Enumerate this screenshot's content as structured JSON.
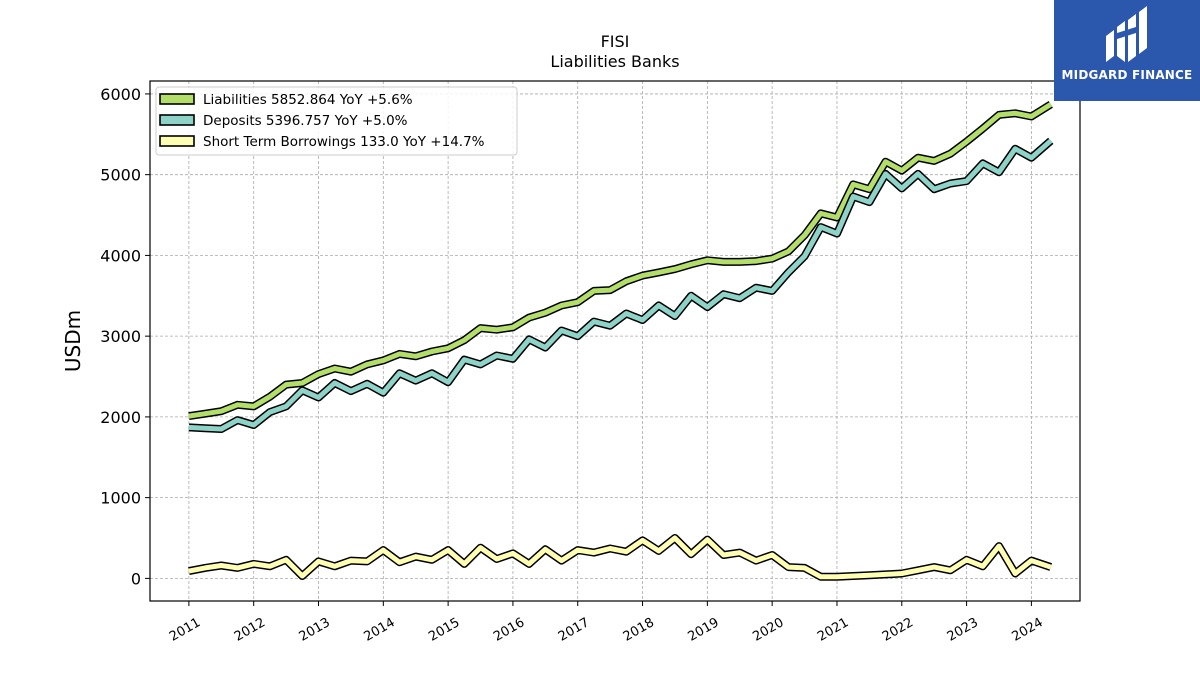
{
  "brand": {
    "name": "MIDGARD FINANCE",
    "color": "#2b57ad",
    "logo_icon": "midgard-finance-logo-icon"
  },
  "chart_data": {
    "type": "line",
    "title": "FISI",
    "subtitle": "Liabilities Banks",
    "ylabel": "USDm",
    "xlabel": "",
    "xlim": [
      2010.4,
      2024.75
    ],
    "ylim": [
      -280,
      6160
    ],
    "yticks": [
      0,
      1000,
      2000,
      3000,
      4000,
      5000,
      6000
    ],
    "xticks": [
      2011,
      2012,
      2013,
      2014,
      2015,
      2016,
      2017,
      2018,
      2019,
      2020,
      2021,
      2022,
      2023,
      2024
    ],
    "grid": true,
    "legend_position": "top-left",
    "series": [
      {
        "name": "Liabilities",
        "legend_label": "Liabilities  5852.864 YoY +5.6%",
        "color": "#b3de69",
        "x": [
          2011.0,
          2011.25,
          2011.5,
          2011.75,
          2012.0,
          2012.25,
          2012.5,
          2012.75,
          2013.0,
          2013.25,
          2013.5,
          2013.75,
          2014.0,
          2014.25,
          2014.5,
          2014.75,
          2015.0,
          2015.25,
          2015.5,
          2015.75,
          2016.0,
          2016.25,
          2016.5,
          2016.75,
          2017.0,
          2017.25,
          2017.5,
          2017.75,
          2018.0,
          2018.25,
          2018.5,
          2018.75,
          2019.0,
          2019.25,
          2019.5,
          2019.75,
          2020.0,
          2020.25,
          2020.5,
          2020.75,
          2021.0,
          2021.25,
          2021.5,
          2021.75,
          2022.0,
          2022.25,
          2022.5,
          2022.75,
          2023.0,
          2023.25,
          2023.5,
          2023.75,
          2024.0,
          2024.3
        ],
        "values": [
          2010,
          2040,
          2070,
          2150,
          2130,
          2250,
          2400,
          2420,
          2530,
          2600,
          2560,
          2650,
          2700,
          2780,
          2750,
          2810,
          2850,
          2950,
          3100,
          3080,
          3110,
          3230,
          3290,
          3380,
          3420,
          3560,
          3570,
          3680,
          3750,
          3790,
          3830,
          3890,
          3940,
          3920,
          3920,
          3930,
          3960,
          4050,
          4250,
          4520,
          4470,
          4880,
          4820,
          5160,
          5050,
          5210,
          5170,
          5260,
          5410,
          5570,
          5740,
          5760,
          5720,
          5870
        ]
      },
      {
        "name": "Deposits",
        "legend_label": "Deposits  5396.757 YoY +5.0%",
        "color": "#8dd3c7",
        "x": [
          2011.0,
          2011.25,
          2011.5,
          2011.75,
          2012.0,
          2012.25,
          2012.5,
          2012.75,
          2013.0,
          2013.25,
          2013.5,
          2013.75,
          2014.0,
          2014.25,
          2014.5,
          2014.75,
          2015.0,
          2015.25,
          2015.5,
          2015.75,
          2016.0,
          2016.25,
          2016.5,
          2016.75,
          2017.0,
          2017.25,
          2017.5,
          2017.75,
          2018.0,
          2018.25,
          2018.5,
          2018.75,
          2019.0,
          2019.25,
          2019.5,
          2019.75,
          2020.0,
          2020.25,
          2020.5,
          2020.75,
          2021.0,
          2021.25,
          2021.5,
          2021.75,
          2022.0,
          2022.25,
          2022.5,
          2022.75,
          2023.0,
          2023.25,
          2023.5,
          2023.75,
          2024.0,
          2024.3
        ],
        "values": [
          1870,
          1860,
          1850,
          1960,
          1900,
          2060,
          2130,
          2330,
          2240,
          2420,
          2320,
          2410,
          2300,
          2540,
          2450,
          2540,
          2430,
          2710,
          2650,
          2760,
          2720,
          2960,
          2860,
          3070,
          3000,
          3180,
          3130,
          3280,
          3200,
          3380,
          3250,
          3500,
          3360,
          3520,
          3470,
          3600,
          3560,
          3790,
          3990,
          4350,
          4270,
          4730,
          4660,
          5010,
          4830,
          5010,
          4820,
          4890,
          4920,
          5140,
          5030,
          5320,
          5210,
          5420
        ]
      },
      {
        "name": "Short Term Borrowings",
        "legend_label": "Short Term Borrowings  133.0 YoY +14.7%",
        "color": "#ffffb3",
        "x": [
          2011.0,
          2011.25,
          2011.5,
          2011.75,
          2012.0,
          2012.25,
          2012.5,
          2012.75,
          2013.0,
          2013.25,
          2013.5,
          2013.75,
          2014.0,
          2014.25,
          2014.5,
          2014.75,
          2015.0,
          2015.25,
          2015.5,
          2015.75,
          2016.0,
          2016.25,
          2016.5,
          2016.75,
          2017.0,
          2017.25,
          2017.5,
          2017.75,
          2018.0,
          2018.25,
          2018.5,
          2018.75,
          2019.0,
          2019.25,
          2019.5,
          2019.75,
          2020.0,
          2020.25,
          2020.5,
          2020.75,
          2021.0,
          2021.25,
          2021.5,
          2021.75,
          2022.0,
          2022.25,
          2022.5,
          2022.75,
          2023.0,
          2023.25,
          2023.5,
          2023.75,
          2024.0,
          2024.3
        ],
        "values": [
          90,
          130,
          160,
          130,
          180,
          150,
          230,
          30,
          210,
          150,
          220,
          210,
          350,
          200,
          270,
          230,
          350,
          180,
          380,
          240,
          310,
          180,
          360,
          220,
          350,
          320,
          370,
          330,
          470,
          340,
          500,
          300,
          480,
          290,
          320,
          220,
          290,
          140,
          130,
          20,
          20,
          30,
          40,
          50,
          60,
          100,
          140,
          100,
          230,
          150,
          400,
          60,
          220,
          140
        ]
      }
    ]
  }
}
